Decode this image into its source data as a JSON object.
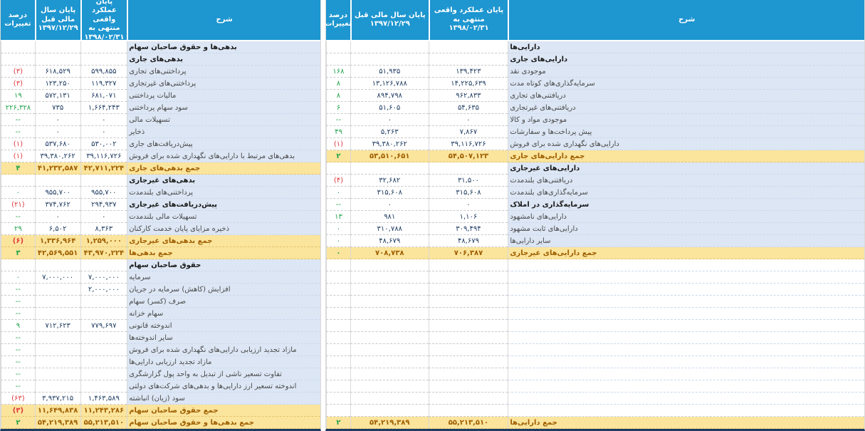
{
  "columns": {
    "desc_label": "شرح",
    "actual_title": "پایان عملکرد واقعی منتهی به",
    "actual_date": "۱۳۹۸/۰۲/۳۱",
    "prev_title": "پایان سال مالی قبل",
    "prev_date": "۱۳۹۷/۱۲/۲۹",
    "pct_label": "درصد تغییرات"
  },
  "assets": {
    "rows": [
      {
        "type": "group",
        "label": "دارایی‌ها",
        "actual": "",
        "prev": "",
        "pct": "",
        "trend": ""
      },
      {
        "type": "group",
        "label": "دارایی‌های جاری",
        "actual": "",
        "prev": "",
        "pct": "",
        "trend": ""
      },
      {
        "type": "item",
        "label": "موجودی نقد",
        "actual": "۱۳۹,۴۲۳",
        "prev": "۵۱,۹۳۵",
        "pct": "۱۶۸",
        "trend": "green"
      },
      {
        "type": "item",
        "label": "سرمایه‌گذاری‌های کوتاه مدت",
        "actual": "۱۴,۲۲۵,۶۳۹",
        "prev": "۱۳,۱۲۶,۷۸۸",
        "pct": "۸",
        "trend": "green"
      },
      {
        "type": "item",
        "label": "دریافتنی‌های تجاری",
        "actual": "۹۶۲,۸۳۳",
        "prev": "۸۹۴,۷۹۸",
        "pct": "۸",
        "trend": "green"
      },
      {
        "type": "item",
        "label": "دریافتنی‌های غیرتجاری",
        "actual": "۵۴,۶۳۵",
        "prev": "۵۱,۶۰۵",
        "pct": "۶",
        "trend": "green"
      },
      {
        "type": "item",
        "label": "موجودی مواد و کالا",
        "actual": "۰",
        "prev": "۰",
        "pct": "--",
        "trend": "green"
      },
      {
        "type": "item",
        "label": "پیش پرداخت‌ها و سفارشات",
        "actual": "۷,۸۶۷",
        "prev": "۵,۲۶۳",
        "pct": "۴۹",
        "trend": "green"
      },
      {
        "type": "item",
        "label": "دارایی‌های نگهداری شده برای فروش",
        "actual": "۳۹,۱۱۶,۷۲۶",
        "prev": "۳۹,۳۸۰,۲۶۲",
        "pct": "(۱)",
        "trend": "red"
      },
      {
        "type": "total",
        "label": "جمع دارایی‌های جاری",
        "actual": "۵۴,۵۰۷,۱۲۳",
        "prev": "۵۳,۵۱۰,۶۵۱",
        "pct": "۲",
        "trend": "green"
      },
      {
        "type": "group",
        "label": "دارایی‌های غیرجاری",
        "actual": "",
        "prev": "",
        "pct": "",
        "trend": ""
      },
      {
        "type": "item",
        "label": "دریافتنی‌های بلندمدت",
        "actual": "۳۱,۵۰۰",
        "prev": "۳۲,۶۸۲",
        "pct": "(۴)",
        "trend": "red"
      },
      {
        "type": "item",
        "label": "سرمایه‌گذاری‌های بلندمدت",
        "actual": "۳۱۵,۶۰۸",
        "prev": "۳۱۵,۶۰۸",
        "pct": "۰",
        "trend": "green"
      },
      {
        "type": "group",
        "label": "سرمایه‌گذاری در املاک",
        "actual": "۰",
        "prev": "۰",
        "pct": "--",
        "trend": "green"
      },
      {
        "type": "item",
        "label": "دارایی‌های نامشهود",
        "actual": "۱,۱۰۶",
        "prev": "۹۸۱",
        "pct": "۱۳",
        "trend": "green"
      },
      {
        "type": "item",
        "label": "دارایی‌های ثابت مشهود",
        "actual": "۳۰۹,۴۹۴",
        "prev": "۳۱۰,۷۸۸",
        "pct": "۰",
        "trend": "green"
      },
      {
        "type": "item",
        "label": "سایر دارایی‌ها",
        "actual": "۴۸,۶۷۹",
        "prev": "۴۸,۶۷۹",
        "pct": "۰",
        "trend": "green"
      },
      {
        "type": "total",
        "label": "جمع دارایی‌های غیرجاری",
        "actual": "۷۰۶,۳۸۷",
        "prev": "۷۰۸,۷۳۸",
        "pct": "۰",
        "trend": "green"
      },
      {
        "type": "empty",
        "label": "",
        "actual": "",
        "prev": "",
        "pct": "",
        "trend": ""
      },
      {
        "type": "empty",
        "label": "",
        "actual": "",
        "prev": "",
        "pct": "",
        "trend": ""
      },
      {
        "type": "empty",
        "label": "",
        "actual": "",
        "prev": "",
        "pct": "",
        "trend": ""
      },
      {
        "type": "empty",
        "label": "",
        "actual": "",
        "prev": "",
        "pct": "",
        "trend": ""
      },
      {
        "type": "empty",
        "label": "",
        "actual": "",
        "prev": "",
        "pct": "",
        "trend": ""
      },
      {
        "type": "empty",
        "label": "",
        "actual": "",
        "prev": "",
        "pct": "",
        "trend": ""
      },
      {
        "type": "empty",
        "label": "",
        "actual": "",
        "prev": "",
        "pct": "",
        "trend": ""
      },
      {
        "type": "empty",
        "label": "",
        "actual": "",
        "prev": "",
        "pct": "",
        "trend": ""
      },
      {
        "type": "empty",
        "label": "",
        "actual": "",
        "prev": "",
        "pct": "",
        "trend": ""
      },
      {
        "type": "empty",
        "label": "",
        "actual": "",
        "prev": "",
        "pct": "",
        "trend": ""
      },
      {
        "type": "empty",
        "label": "",
        "actual": "",
        "prev": "",
        "pct": "",
        "trend": ""
      },
      {
        "type": "empty",
        "label": "",
        "actual": "",
        "prev": "",
        "pct": "",
        "trend": ""
      },
      {
        "type": "empty",
        "label": "",
        "actual": "",
        "prev": "",
        "pct": "",
        "trend": ""
      },
      {
        "type": "total",
        "label": "جمع دارایی‌ها",
        "actual": "۵۵,۲۱۳,۵۱۰",
        "prev": "۵۴,۲۱۹,۳۸۹",
        "pct": "۲",
        "trend": "green"
      }
    ]
  },
  "liabilities_equity": {
    "rows": [
      {
        "type": "group",
        "label": "بدهی‌ها و حقوق صاحبان سهام",
        "actual": "",
        "prev": "",
        "pct": "",
        "trend": ""
      },
      {
        "type": "group",
        "label": "بدهی‌های جاری",
        "actual": "",
        "prev": "",
        "pct": "",
        "trend": ""
      },
      {
        "type": "item",
        "label": "پرداختنی‌های تجاری",
        "actual": "۵۹۹,۸۵۵",
        "prev": "۶۱۸,۵۲۹",
        "pct": "(۳)",
        "trend": "red"
      },
      {
        "type": "item",
        "label": "پرداختنی‌های غیرتجاری",
        "actual": "۱۱۹,۳۲۷",
        "prev": "۱۲۳,۲۵۰",
        "pct": "(۳)",
        "trend": "red"
      },
      {
        "type": "item",
        "label": "مالیات پرداختنی",
        "actual": "۶۸۱,۰۷۱",
        "prev": "۵۷۲,۱۳۱",
        "pct": "۱۹",
        "trend": "green"
      },
      {
        "type": "item",
        "label": "سود سهام پرداختنی",
        "actual": "۱,۶۶۴,۲۴۳",
        "prev": "۷۳۵",
        "pct": "۲۲۶,۳۲۸",
        "trend": "green"
      },
      {
        "type": "item",
        "label": "تسهیلات مالی",
        "actual": "۰",
        "prev": "۰",
        "pct": "--",
        "trend": "green"
      },
      {
        "type": "item",
        "label": "ذخایر",
        "actual": "۰",
        "prev": "۰",
        "pct": "--",
        "trend": "green"
      },
      {
        "type": "item",
        "label": "پیش‌دریافت‌های جاری",
        "actual": "۵۳۰,۰۰۲",
        "prev": "۵۳۷,۶۸۰",
        "pct": "(۱)",
        "trend": "red"
      },
      {
        "type": "item",
        "label": "بدهی‌های مرتبط با دارایی‌های نگهداری شده برای فروش",
        "actual": "۳۹,۱۱۶,۷۲۶",
        "prev": "۳۹,۳۸۰,۲۶۲",
        "pct": "(۱)",
        "trend": "red"
      },
      {
        "type": "total",
        "label": "جمع بدهی‌های جاری",
        "actual": "۴۲,۷۱۱,۲۲۴",
        "prev": "۴۱,۲۳۲,۵۸۷",
        "pct": "۴",
        "trend": "green"
      },
      {
        "type": "group",
        "label": "بدهی‌های غیرجاری",
        "actual": "",
        "prev": "",
        "pct": "",
        "trend": ""
      },
      {
        "type": "item",
        "label": "پرداختنی‌های بلندمدت",
        "actual": "۹۵۵,۷۰۰",
        "prev": "۹۵۵,۷۰۰",
        "pct": "۰",
        "trend": "green"
      },
      {
        "type": "group",
        "label": "پیش‌دریافت‌های غیرجاری",
        "actual": "۲۹۴,۹۳۷",
        "prev": "۳۷۴,۷۶۲",
        "pct": "(۲۱)",
        "trend": "red"
      },
      {
        "type": "item",
        "label": "تسهیلات مالی بلندمدت",
        "actual": "۰",
        "prev": "۰",
        "pct": "--",
        "trend": "green"
      },
      {
        "type": "item",
        "label": "ذخیره مزایای پایان خدمت کارکنان",
        "actual": "۸,۳۶۳",
        "prev": "۶,۵۰۲",
        "pct": "۲۹",
        "trend": "green"
      },
      {
        "type": "total",
        "label": "جمع بدهی‌های غیرجاری",
        "actual": "۱,۲۵۹,۰۰۰",
        "prev": "۱,۳۳۶,۹۶۴",
        "pct": "(۶)",
        "trend": "red"
      },
      {
        "type": "total",
        "label": "جمع بدهی‌ها",
        "actual": "۴۳,۹۷۰,۲۲۴",
        "prev": "۴۲,۵۶۹,۵۵۱",
        "pct": "۳",
        "trend": "green"
      },
      {
        "type": "group",
        "label": "حقوق صاحبان سهام",
        "actual": "",
        "prev": "",
        "pct": "",
        "trend": ""
      },
      {
        "type": "item",
        "label": "سرمایه",
        "actual": "۷,۰۰۰,۰۰۰",
        "prev": "۷,۰۰۰,۰۰۰",
        "pct": "۰",
        "trend": "green"
      },
      {
        "type": "item",
        "label": "افزایش (کاهش) سرمایه در جریان",
        "actual": "۲,۰۰۰,۰۰۰",
        "prev": "",
        "pct": "--",
        "trend": "green"
      },
      {
        "type": "item",
        "label": "صرف (کسر) سهام",
        "actual": "",
        "prev": "",
        "pct": "--",
        "trend": "green"
      },
      {
        "type": "item",
        "label": "سهام خزانه",
        "actual": "",
        "prev": "",
        "pct": "--",
        "trend": "green"
      },
      {
        "type": "item",
        "label": "اندوخته قانونی",
        "actual": "۷۷۹,۶۹۷",
        "prev": "۷۱۲,۶۲۳",
        "pct": "۹",
        "trend": "green"
      },
      {
        "type": "item",
        "label": "سایر اندوخته‌ها",
        "actual": "",
        "prev": "",
        "pct": "--",
        "trend": "green"
      },
      {
        "type": "item",
        "label": "مازاد تجدید ارزیابی دارایی‌های نگهداری شده برای فروش",
        "actual": "",
        "prev": "",
        "pct": "--",
        "trend": "green"
      },
      {
        "type": "item",
        "label": "مازاد تجدید ارزیابی دارایی‌ها",
        "actual": "",
        "prev": "",
        "pct": "--",
        "trend": "green"
      },
      {
        "type": "item",
        "label": "تفاوت تسعیر ناشی از تبدیل به واحد پول گزارشگری",
        "actual": "",
        "prev": "",
        "pct": "--",
        "trend": "green"
      },
      {
        "type": "item",
        "label": "اندوخته تسعیر ارز دارایی‌ها و بدهی‌های شرکت‌های دولتی",
        "actual": "",
        "prev": "",
        "pct": "--",
        "trend": "green"
      },
      {
        "type": "item",
        "label": "سود (زیان) انباشته",
        "actual": "۱,۴۶۳,۵۸۹",
        "prev": "۳,۹۳۷,۲۱۵",
        "pct": "(۶۳)",
        "trend": "red"
      },
      {
        "type": "total",
        "label": "جمع حقوق صاحبان سهام",
        "actual": "۱۱,۲۴۳,۲۸۶",
        "prev": "۱۱,۶۴۹,۸۳۸",
        "pct": "(۳)",
        "trend": "red"
      },
      {
        "type": "total",
        "label": "جمع بدهی‌ها و حقوق صاحبان سهام",
        "actual": "۵۵,۲۱۳,۵۱۰",
        "prev": "۵۴,۲۱۹,۳۸۹",
        "pct": "۲",
        "trend": "green"
      }
    ]
  },
  "colors": {
    "header_bg": "#1E96D0",
    "desc_bg": "#DCE6F4",
    "total_bg": "#FBE49C",
    "total_text": "#9E5E00",
    "value_text": "#1F3C61",
    "item_text": "#4A4A4A",
    "group_text": "#1A1A1A",
    "pos": "#21A24B",
    "neg": "#E0393E"
  }
}
